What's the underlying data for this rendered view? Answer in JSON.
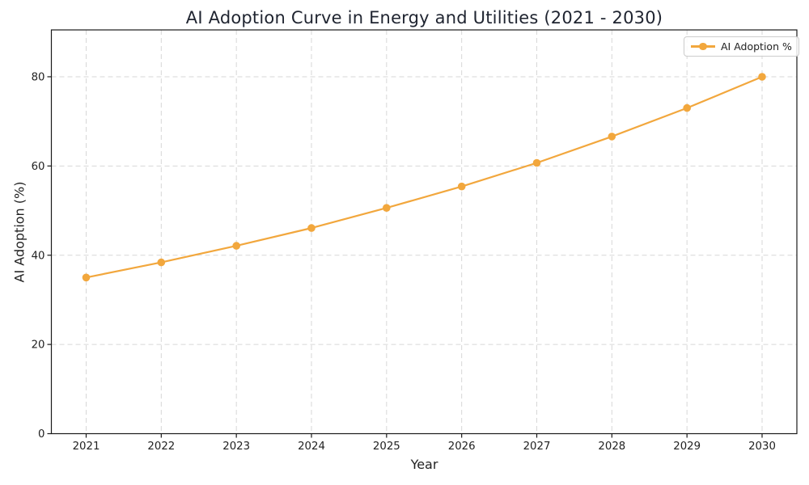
{
  "chart_data": {
    "type": "line",
    "title": "AI Adoption Curve in Energy and Utilities (2021 - 2030)",
    "xlabel": "Year",
    "ylabel": "AI Adoption (%)",
    "categories": [
      "2021",
      "2022",
      "2023",
      "2024",
      "2025",
      "2026",
      "2027",
      "2028",
      "2029",
      "2030"
    ],
    "series": [
      {
        "name": "AI Adoption %",
        "values": [
          35,
          38.4,
          42.1,
          46.1,
          50.6,
          55.4,
          60.7,
          66.6,
          73,
          80
        ],
        "color": "#F2A73D",
        "marker": "circle",
        "line_style": "solid"
      }
    ],
    "ylim": [
      0,
      90.5
    ],
    "yticks": [
      0,
      20,
      40,
      60,
      80
    ],
    "grid": true,
    "grid_line_style": "dashed",
    "grid_color": "#d7d7d7",
    "axis_color": "#1a1a1a",
    "text_color": "#222222",
    "title_color": "#1f2430",
    "legend_position": "upper right"
  }
}
